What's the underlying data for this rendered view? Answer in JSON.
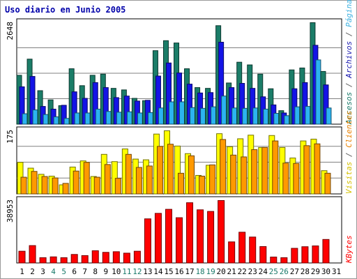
{
  "chart_data": {
    "type": "bar",
    "title": "Uso diario en Junio 2005",
    "x": [
      "1",
      "2",
      "3",
      "4",
      "5",
      "6",
      "7",
      "8",
      "9",
      "10",
      "11",
      "12",
      "13",
      "14",
      "15",
      "16",
      "17",
      "18",
      "19",
      "20",
      "21",
      "22",
      "23",
      "24",
      "25",
      "26",
      "27",
      "28",
      "29",
      "30",
      "31"
    ],
    "weekend_days": [
      "4",
      "5",
      "11",
      "12",
      "18",
      "19",
      "25",
      "26"
    ],
    "panels": [
      {
        "id": "hits",
        "ylabel_max": "2648",
        "ymax": 2648,
        "grid": true,
        "legend": [
          {
            "text": "Accesos",
            "color": "#1a7a6a"
          },
          {
            "text": "/",
            "color": "#555555"
          },
          {
            "text": "Archivos",
            "color": "#1a1ab0"
          },
          {
            "text": "/",
            "color": "#555555"
          },
          {
            "text": "Páginas",
            "color": "#3cb0e0"
          }
        ],
        "series": [
          {
            "name": "Accesos",
            "color": "#1b7d68",
            "values": [
              1280,
              1700,
              880,
              640,
              490,
              1450,
              1010,
              1280,
              1310,
              940,
              900,
              680,
              620,
              1920,
              2180,
              2120,
              1450,
              960,
              940,
              2570,
              1080,
              1620,
              1550,
              1310,
              930,
              360,
              1420,
              1470,
              2680,
              1380,
              0
            ]
          },
          {
            "name": "Archivos",
            "color": "#1414e6",
            "values": [
              980,
              1250,
              470,
              400,
              500,
              850,
              680,
              1090,
              960,
              700,
              740,
              610,
              630,
              1260,
              1600,
              1340,
              1050,
              820,
              830,
              2140,
              960,
              1070,
              940,
              720,
              510,
              300,
              930,
              1090,
              2060,
              1030,
              0
            ]
          },
          {
            "name": "Páginas",
            "color": "#2cb4f0",
            "values": [
              280,
              380,
              260,
              200,
              160,
              300,
              300,
              400,
              340,
              320,
              330,
              300,
              310,
              430,
              590,
              590,
              440,
              420,
              460,
              740,
              430,
              420,
              430,
              400,
              290,
              230,
              460,
              470,
              1680,
              430,
              0
            ]
          }
        ]
      },
      {
        "id": "visits",
        "ylabel_max": "175",
        "ymax": 175,
        "grid": true,
        "legend": [
          {
            "text": "Visitas",
            "color": "#d4c000"
          },
          {
            "text": "/",
            "color": "#555555"
          },
          {
            "text": "Clientes",
            "color": "#e88000"
          }
        ],
        "series": [
          {
            "name": "Visitas",
            "color": "#ffff00",
            "values": [
              88,
              72,
              55,
              50,
              26,
              75,
              92,
              49,
              110,
              90,
              125,
              97,
              95,
              166,
              180,
              133,
              112,
              52,
              80,
              167,
              131,
              153,
              163,
              129,
              162,
              129,
              100,
              147,
              152,
              65,
              0
            ]
          },
          {
            "name": "Clientes",
            "color": "#ff9900",
            "values": [
              47,
              63,
              49,
              45,
              30,
              64,
              88,
              47,
              82,
              44,
              110,
              74,
              78,
              132,
              138,
              58,
              106,
              50,
              81,
              151,
              108,
              103,
              123,
              129,
              147,
              86,
              85,
              134,
              139,
              58,
              0
            ]
          }
        ]
      },
      {
        "id": "kbytes",
        "ylabel_max": "38953",
        "ymax": 38953,
        "grid": false,
        "legend": [
          {
            "text": "KBytes",
            "color": "#ff0000"
          }
        ],
        "series": [
          {
            "name": "KBytes",
            "color": "#ff0000",
            "values": [
              7500,
              11000,
              3500,
              4000,
              3500,
              5500,
              4800,
              7800,
              6800,
              7200,
              6300,
              7500,
              27600,
              31000,
              33500,
              28300,
              37600,
              33200,
              32200,
              39600,
              13300,
              19300,
              16300,
              10400,
              3900,
              3500,
              9300,
              10300,
              10800,
              14800,
              0
            ]
          }
        ]
      }
    ]
  }
}
